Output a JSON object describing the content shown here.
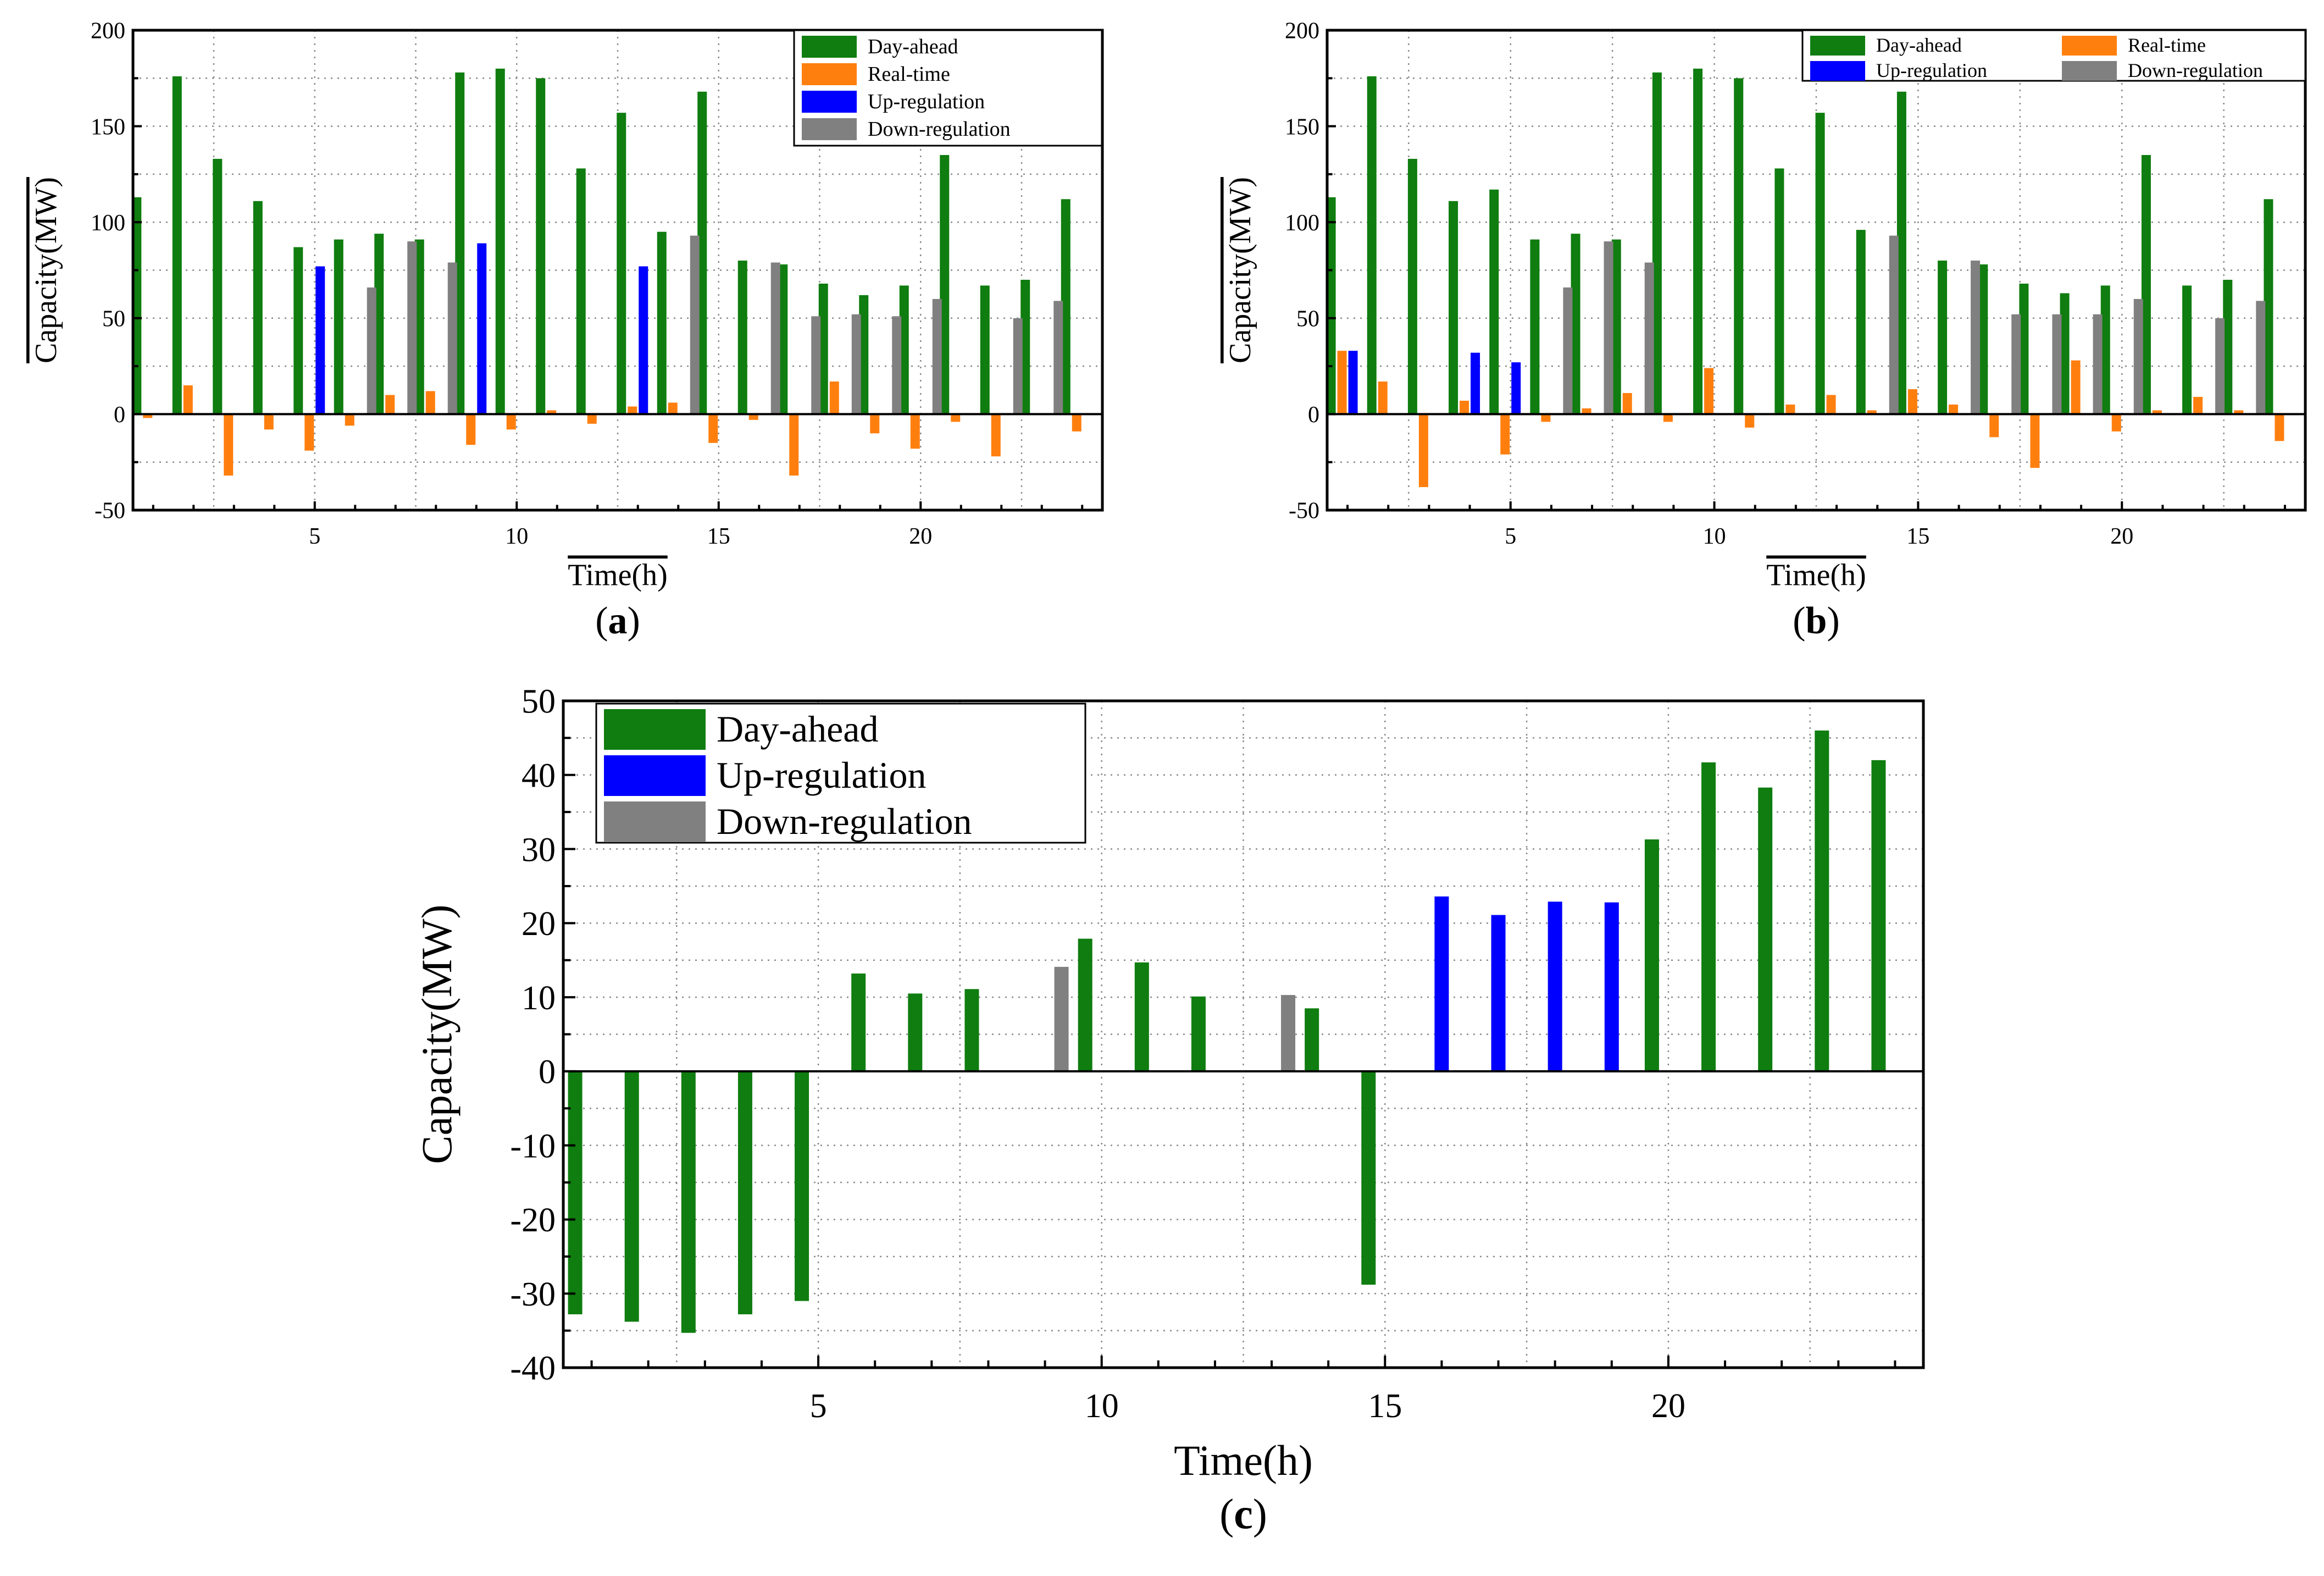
{
  "colors": {
    "day_ahead": "#0f7d0f",
    "real_time": "#ff7f0e",
    "up_regulation": "#0000ff",
    "down_regulation": "#808080"
  },
  "chart_data": [
    {
      "id": "a",
      "type": "bar",
      "panel_label": "(a)",
      "panel_letter": "a",
      "xlabel": "Time(h)",
      "ylabel": "Capacity(MW)",
      "xlim": [
        0.5,
        24.5
      ],
      "ylim": [
        -50,
        200
      ],
      "yticks": [
        -50,
        0,
        50,
        100,
        150,
        200
      ],
      "xticks": [
        5,
        10,
        15,
        20
      ],
      "grid": true,
      "legend_position": "top-right",
      "legend_layout": "column",
      "x": [
        1,
        2,
        3,
        4,
        5,
        6,
        7,
        8,
        9,
        10,
        11,
        12,
        13,
        14,
        15,
        16,
        17,
        18,
        19,
        20,
        21,
        22,
        23,
        24
      ],
      "series": [
        {
          "name": "Day-ahead",
          "color_key": "day_ahead",
          "values": [
            113,
            176,
            133,
            111,
            87,
            91,
            94,
            91,
            178,
            180,
            175,
            128,
            157,
            95,
            168,
            80,
            78,
            68,
            62,
            67,
            135,
            67,
            70,
            112
          ]
        },
        {
          "name": "Real-time",
          "color_key": "real_time",
          "values": [
            -2,
            15,
            -32,
            -8,
            -19,
            -6,
            10,
            12,
            -16,
            -8,
            2,
            -5,
            4,
            6,
            -15,
            -3,
            -32,
            17,
            -10,
            -18,
            -4,
            -22,
            0,
            -9
          ]
        },
        {
          "name": "Up-regulation",
          "color_key": "up_regulation",
          "values": [
            0,
            0,
            0,
            0,
            77,
            0,
            0,
            0,
            89,
            0,
            0,
            0,
            77,
            0,
            0,
            0,
            0,
            0,
            0,
            0,
            0,
            0,
            0,
            0
          ]
        },
        {
          "name": "Down-regulation",
          "color_key": "down_regulation",
          "values": [
            0,
            0,
            0,
            0,
            0,
            66,
            90,
            79,
            0,
            0,
            0,
            0,
            0,
            93,
            0,
            79,
            51,
            52,
            51,
            60,
            0,
            50,
            59,
            0
          ]
        }
      ]
    },
    {
      "id": "b",
      "type": "bar",
      "panel_label": "(b)",
      "panel_letter": "b",
      "xlabel": "Time(h)",
      "ylabel": "Capacity(MW)",
      "xlim": [
        0.5,
        24.5
      ],
      "ylim": [
        -50,
        200
      ],
      "yticks": [
        -50,
        0,
        50,
        100,
        150,
        200
      ],
      "xticks": [
        5,
        10,
        15,
        20
      ],
      "grid": true,
      "legend_position": "top-right",
      "legend_layout": "grid",
      "x": [
        1,
        2,
        3,
        4,
        5,
        6,
        7,
        8,
        9,
        10,
        11,
        12,
        13,
        14,
        15,
        16,
        17,
        18,
        19,
        20,
        21,
        22,
        23,
        24
      ],
      "series": [
        {
          "name": "Day-ahead",
          "color_key": "day_ahead",
          "values": [
            113,
            176,
            133,
            111,
            117,
            91,
            94,
            91,
            178,
            180,
            175,
            128,
            157,
            96,
            168,
            80,
            78,
            68,
            63,
            67,
            135,
            67,
            70,
            112
          ]
        },
        {
          "name": "Real-time",
          "color_key": "real_time",
          "values": [
            33,
            17,
            -38,
            7,
            -21,
            -4,
            3,
            11,
            -4,
            24,
            -7,
            5,
            10,
            2,
            13,
            5,
            -12,
            -28,
            28,
            -9,
            2,
            9,
            2,
            -14
          ]
        },
        {
          "name": "Up-regulation",
          "color_key": "up_regulation",
          "values": [
            33,
            0,
            0,
            32,
            27,
            0,
            0,
            0,
            0,
            0,
            0,
            0,
            0,
            0,
            0,
            0,
            0,
            0,
            0,
            0,
            0,
            0,
            0,
            0
          ]
        },
        {
          "name": "Down-regulation",
          "color_key": "down_regulation",
          "values": [
            0,
            0,
            0,
            0,
            0,
            66,
            90,
            79,
            0,
            0,
            0,
            0,
            0,
            93,
            0,
            80,
            52,
            52,
            52,
            60,
            0,
            50,
            59,
            0
          ]
        }
      ]
    },
    {
      "id": "c",
      "type": "bar",
      "panel_label": "(c)",
      "panel_letter": "c",
      "xlabel": "Time(h)",
      "ylabel": "Capacity(MW)",
      "xlim": [
        0.5,
        24.5
      ],
      "ylim": [
        -40,
        50
      ],
      "yticks": [
        -40,
        -30,
        -20,
        -10,
        0,
        10,
        20,
        30,
        40,
        50
      ],
      "xticks": [
        5,
        10,
        15,
        20
      ],
      "grid": true,
      "legend_position": "top-left",
      "legend_layout": "column",
      "x": [
        1,
        2,
        3,
        4,
        5,
        6,
        7,
        8,
        9,
        10,
        11,
        12,
        13,
        14,
        15,
        16,
        17,
        18,
        19,
        20,
        21,
        22,
        23,
        24
      ],
      "series": [
        {
          "name": "Day-ahead",
          "color_key": "day_ahead",
          "values": [
            -32.8,
            -33.8,
            -35.3,
            -32.8,
            -31,
            13.2,
            10.5,
            11.1,
            0,
            17.9,
            14.7,
            10.1,
            0,
            8.5,
            -28.8,
            0,
            0,
            0,
            0,
            31.3,
            41.7,
            38.3,
            46,
            42
          ]
        },
        {
          "name": "Up-regulation",
          "color_key": "up_regulation",
          "values": [
            0,
            0,
            0,
            0,
            0,
            0,
            0,
            0,
            0,
            0,
            0,
            0,
            0,
            0,
            0,
            23.6,
            21.1,
            22.9,
            22.8,
            0,
            0,
            0,
            0,
            0
          ]
        },
        {
          "name": "Down-regulation",
          "color_key": "down_regulation",
          "values": [
            0,
            0,
            0,
            0,
            0,
            0,
            0,
            0,
            14.1,
            0,
            0,
            0,
            10.3,
            0,
            0,
            0,
            0,
            0,
            0,
            0,
            0,
            0,
            0,
            0
          ]
        }
      ]
    }
  ]
}
